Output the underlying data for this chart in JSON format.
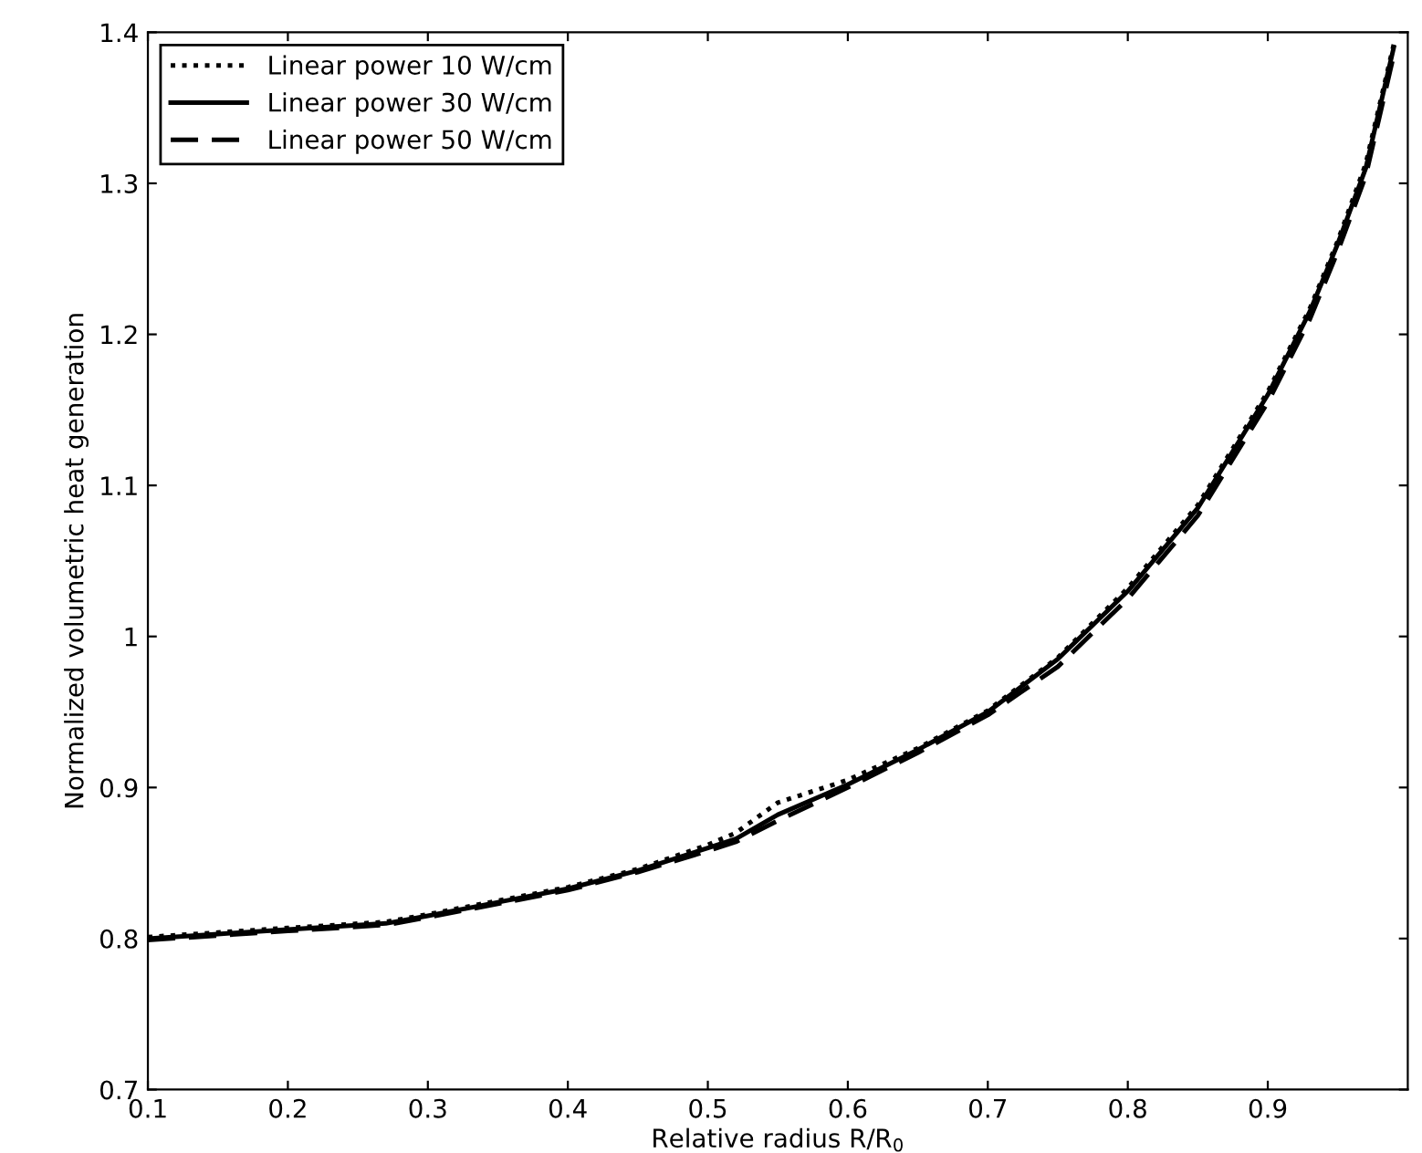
{
  "chart_data": {
    "type": "line",
    "xlabel": "Relative radius R/R$_{0}$",
    "ylabel": "Normalized volumetric heat generation",
    "x": [
      0.1,
      0.15,
      0.2,
      0.27,
      0.3,
      0.35,
      0.4,
      0.45,
      0.5,
      0.52,
      0.55,
      0.6,
      0.65,
      0.7,
      0.75,
      0.8,
      0.85,
      0.9,
      0.93,
      0.95,
      0.97,
      0.99
    ],
    "series": [
      {
        "name": "Linear power 10 W/cm",
        "color": "#000000",
        "line_style": "dotted",
        "values": [
          0.801,
          0.804,
          0.807,
          0.811,
          0.816,
          0.825,
          0.834,
          0.846,
          0.862,
          0.87,
          0.89,
          0.905,
          0.926,
          0.951,
          0.986,
          1.032,
          1.087,
          1.162,
          1.217,
          1.262,
          1.313,
          1.392
        ]
      },
      {
        "name": "Linear power 30 W/cm",
        "color": "#000000",
        "line_style": "solid",
        "values": [
          0.8,
          0.803,
          0.806,
          0.81,
          0.815,
          0.824,
          0.833,
          0.845,
          0.86,
          0.866,
          0.882,
          0.902,
          0.925,
          0.95,
          0.985,
          1.03,
          1.085,
          1.16,
          1.215,
          1.26,
          1.31,
          1.39
        ]
      },
      {
        "name": "Linear power 50 W/cm",
        "color": "#000000",
        "line_style": "dashed",
        "values": [
          0.799,
          0.802,
          0.805,
          0.809,
          0.814,
          0.823,
          0.832,
          0.844,
          0.858,
          0.864,
          0.878,
          0.9,
          0.923,
          0.948,
          0.98,
          1.025,
          1.08,
          1.155,
          1.21,
          1.255,
          1.305,
          1.385
        ]
      }
    ],
    "xlim": [
      0.1,
      1.0
    ],
    "xticks": [
      0.1,
      0.2,
      0.3,
      0.4,
      0.5,
      0.6,
      0.7,
      0.8,
      0.9
    ],
    "ylim": [
      0.7,
      1.4
    ],
    "yticks": [
      0.7,
      0.8,
      0.9,
      1,
      1.1,
      1.2,
      1.3,
      1.4
    ],
    "grid": false,
    "legend": "top left"
  }
}
